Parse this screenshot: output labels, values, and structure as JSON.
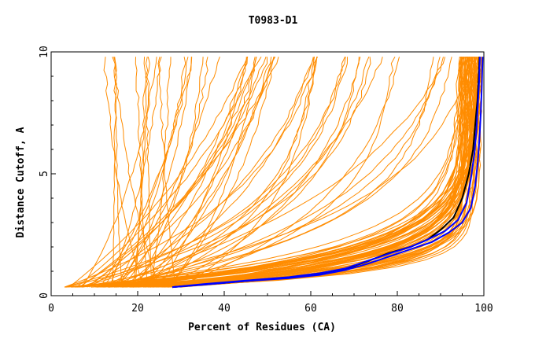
{
  "chart_data": {
    "type": "line",
    "title": "T0983-D1",
    "xlabel": "Percent of Residues (CA)",
    "ylabel": "Distance Cutoff, A",
    "xlim": [
      0,
      100
    ],
    "ylim": [
      0,
      10
    ],
    "x_ticks": [
      "0",
      "20",
      "40",
      "60",
      "80",
      "100"
    ],
    "y_ticks": [
      "0",
      "5",
      "10"
    ],
    "grid": false,
    "colors": {
      "models": "#ff8c00",
      "highlight_black": "#000000",
      "highlight_blue": "#0000ff",
      "axis": "#000000"
    },
    "series": [
      {
        "name": "top-model-black",
        "color": "#000000",
        "x": [
          28,
          35,
          45,
          55,
          62,
          68,
          73,
          78,
          83,
          87,
          90,
          93,
          95,
          96.5,
          97.5,
          98,
          98.5,
          98.8,
          99
        ],
        "y": [
          0.35,
          0.45,
          0.6,
          0.75,
          0.9,
          1.1,
          1.4,
          1.75,
          2.0,
          2.3,
          2.7,
          3.2,
          4.0,
          5.0,
          6.0,
          7.0,
          8.0,
          9.0,
          9.8
        ]
      },
      {
        "name": "top-model-blue-1",
        "color": "#0000ff",
        "x": [
          28,
          35,
          45,
          55,
          62,
          68,
          73,
          78,
          83,
          88,
          92,
          95,
          97,
          98,
          98.6,
          99,
          99.3,
          99.5,
          99.7
        ],
        "y": [
          0.35,
          0.45,
          0.6,
          0.72,
          0.85,
          1.05,
          1.3,
          1.6,
          1.9,
          2.2,
          2.6,
          3.0,
          3.6,
          4.5,
          5.5,
          6.5,
          7.5,
          8.5,
          9.8
        ]
      },
      {
        "name": "top-model-blue-2",
        "color": "#0000ff",
        "x": [
          28,
          35,
          45,
          55,
          62,
          68,
          73,
          78,
          83,
          87,
          91,
          94,
          96,
          97,
          97.8,
          98.3,
          98.6,
          98.9,
          99.1
        ],
        "y": [
          0.35,
          0.47,
          0.62,
          0.76,
          0.92,
          1.12,
          1.42,
          1.72,
          2.0,
          2.3,
          2.65,
          3.1,
          3.8,
          4.8,
          5.8,
          6.8,
          7.8,
          8.8,
          9.8
        ]
      }
    ],
    "model_bundle": {
      "name": "other-models",
      "color": "#ff8c00",
      "line_count": 120,
      "start_x_range": [
        3,
        30
      ],
      "y_start": 0.35,
      "y_end": 9.8
    }
  }
}
